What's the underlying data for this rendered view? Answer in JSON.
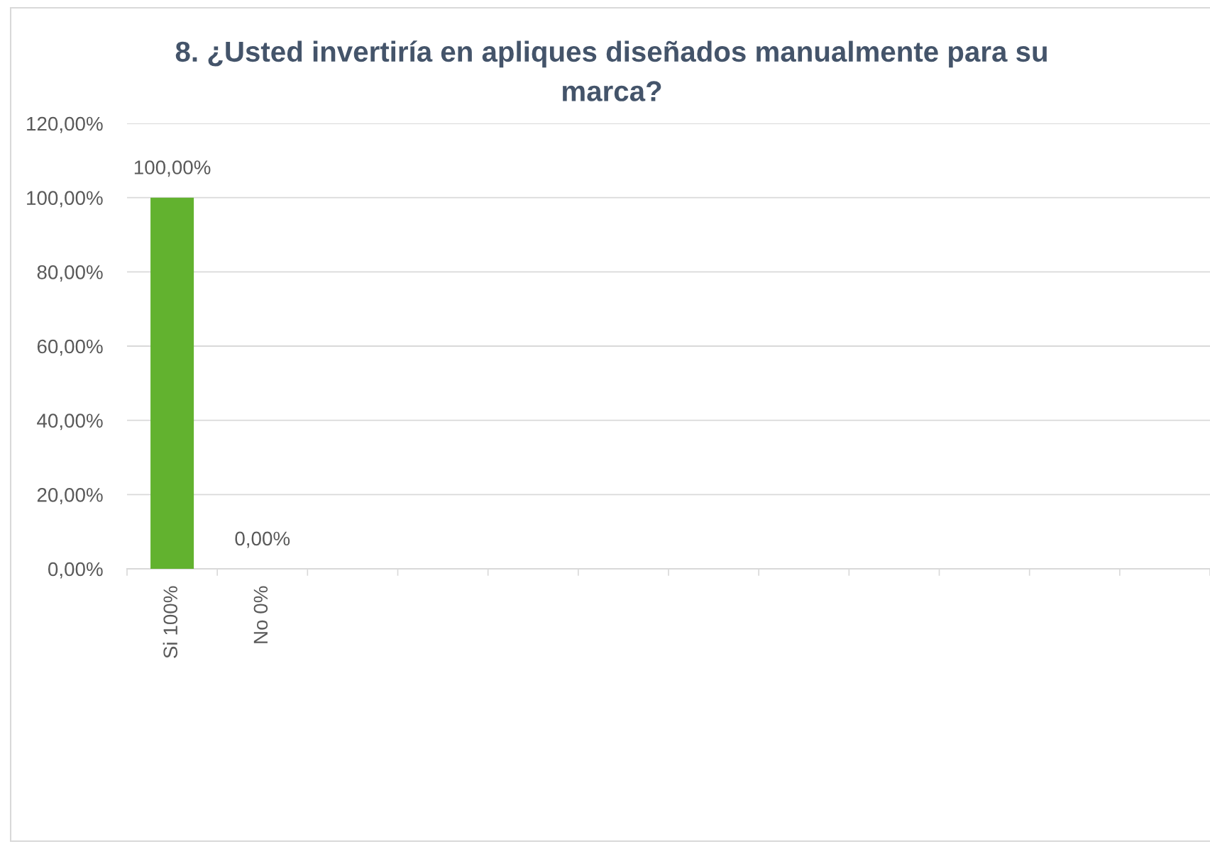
{
  "chart_data": {
    "type": "bar",
    "title": "8. ¿Usted invertiría en apliques diseñados manualmente para su marca?",
    "categories": [
      "Si 100%",
      "No 0%",
      null,
      null,
      null,
      null,
      null,
      null,
      null,
      null,
      null,
      null
    ],
    "values": [
      100,
      0,
      null,
      null,
      null,
      null,
      null,
      null,
      null,
      null,
      null,
      null
    ],
    "value_labels": [
      "100,00%",
      "0,00%",
      null,
      null,
      null,
      null,
      null,
      null,
      null,
      null,
      null,
      null
    ],
    "color": "#62b22f",
    "ylim": [
      0,
      120
    ],
    "yticks": [
      {
        "value": 0,
        "label": "0,00%"
      },
      {
        "value": 20,
        "label": "20,00%"
      },
      {
        "value": 40,
        "label": "40,00%"
      },
      {
        "value": 60,
        "label": "60,00%"
      },
      {
        "value": 80,
        "label": "80,00%"
      },
      {
        "value": 100,
        "label": "100,00%"
      },
      {
        "value": 120,
        "label": "120,00%"
      }
    ],
    "grid": "y"
  }
}
